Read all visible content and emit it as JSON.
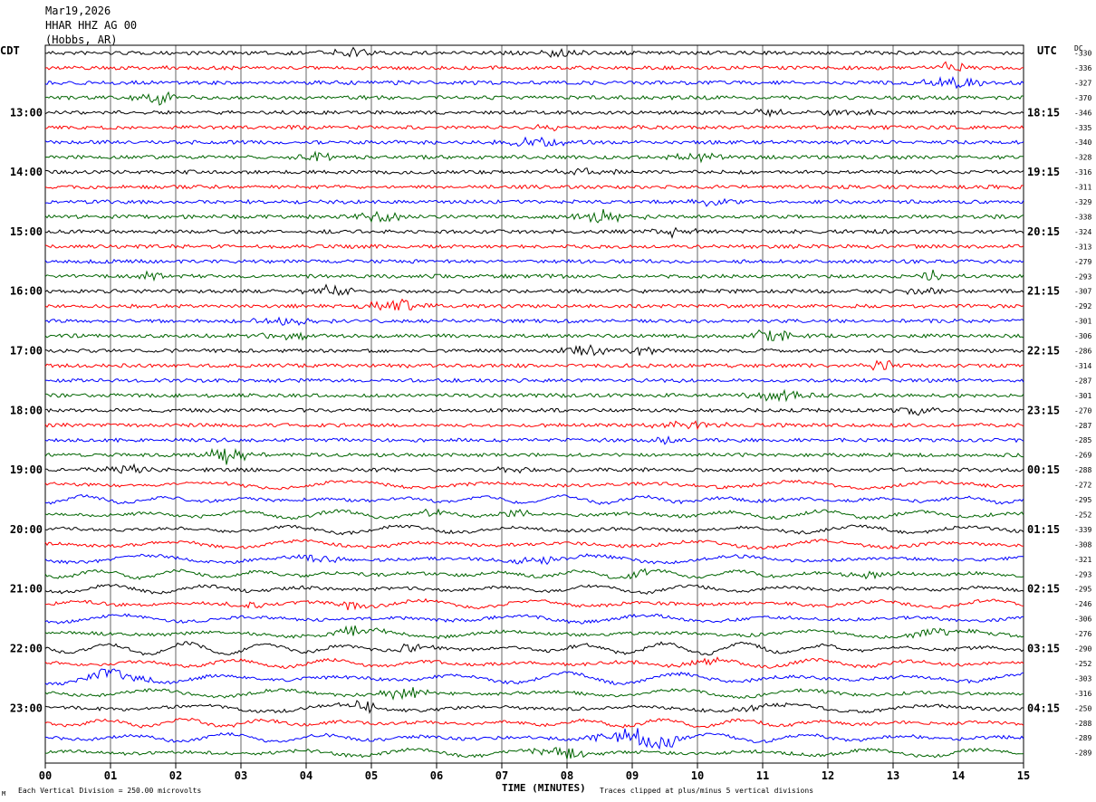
{
  "header": {
    "date": "Mar19,2026",
    "station": "HHAR HHZ AG 00",
    "location": "(Hobbs, AR)"
  },
  "chart_data": {
    "type": "line",
    "title": "",
    "left_axis_label": "CDT",
    "right_axis_label": "UTC",
    "dc_header": "DC",
    "xlabel": "TIME (MINUTES)",
    "xlim": [
      0,
      15
    ],
    "x_ticks": [
      "00",
      "01",
      "02",
      "03",
      "04",
      "05",
      "06",
      "07",
      "08",
      "09",
      "10",
      "11",
      "12",
      "13",
      "14",
      "15"
    ],
    "trace_colors": [
      "#000000",
      "#ff0000",
      "#0000ff",
      "#006400"
    ],
    "traces_per_hour": 4,
    "trace_count": 48,
    "left_hour_labels": [
      {
        "trace": 4,
        "label": "13:00"
      },
      {
        "trace": 8,
        "label": "14:00"
      },
      {
        "trace": 12,
        "label": "15:00"
      },
      {
        "trace": 16,
        "label": "16:00"
      },
      {
        "trace": 20,
        "label": "17:00"
      },
      {
        "trace": 24,
        "label": "18:00"
      },
      {
        "trace": 28,
        "label": "19:00"
      },
      {
        "trace": 32,
        "label": "20:00"
      },
      {
        "trace": 36,
        "label": "21:00"
      },
      {
        "trace": 40,
        "label": "22:00"
      },
      {
        "trace": 44,
        "label": "23:00"
      }
    ],
    "right_hour_labels": [
      {
        "trace": 4,
        "label": "18:15"
      },
      {
        "trace": 8,
        "label": "19:15"
      },
      {
        "trace": 12,
        "label": "20:15"
      },
      {
        "trace": 16,
        "label": "21:15"
      },
      {
        "trace": 20,
        "label": "22:15"
      },
      {
        "trace": 24,
        "label": "23:15"
      },
      {
        "trace": 28,
        "label": "00:15"
      },
      {
        "trace": 32,
        "label": "01:15"
      },
      {
        "trace": 36,
        "label": "02:15"
      },
      {
        "trace": 40,
        "label": "03:15"
      },
      {
        "trace": 44,
        "label": "04:15"
      }
    ],
    "dc_offsets": [
      "-330",
      "-336",
      "-327",
      "-370",
      "-346",
      "-335",
      "-340",
      "-328",
      "-316",
      "-311",
      "-329",
      "-338",
      "-324",
      "-313",
      "-279",
      "-293",
      "-307",
      "-292",
      "-301",
      "-306",
      "-286",
      "-314",
      "-287",
      "-301",
      "-270",
      "-287",
      "-285",
      "-269",
      "-288",
      "-272",
      "-295",
      "-252",
      "-339",
      "-308",
      "-321",
      "-293",
      "-295",
      "-246",
      "-306",
      "-276",
      "-290",
      "-252",
      "-303",
      "-316",
      "-250",
      "-288",
      "-289",
      "-289"
    ],
    "footer_left": "Each Vertical Division =  250.00 microvolts",
    "footer_right": "Traces clipped at plus/minus 5 vertical divisions",
    "footer_mark": "M"
  }
}
